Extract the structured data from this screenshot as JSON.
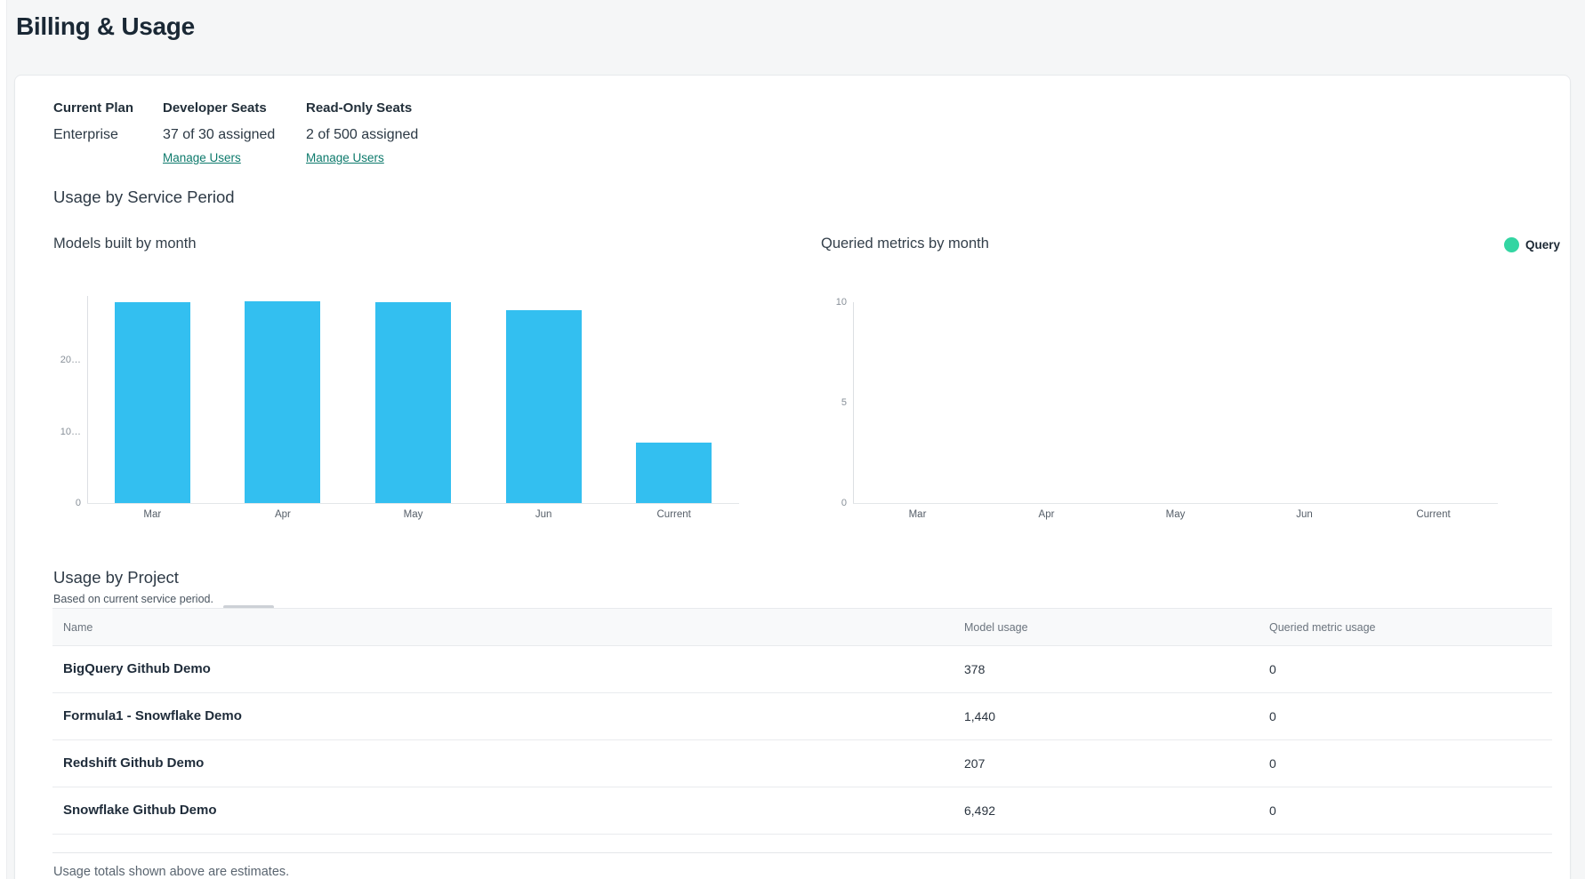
{
  "page": {
    "title": "Billing & Usage"
  },
  "plan": {
    "current_plan_label": "Current Plan",
    "current_plan_value": "Enterprise",
    "developer_seats_label": "Developer Seats",
    "developer_seats_value": "37 of 30 assigned",
    "developer_manage_label": "Manage Users",
    "readonly_seats_label": "Read-Only Seats",
    "readonly_seats_value": "2 of 500 assigned",
    "readonly_manage_label": "Manage Users"
  },
  "usage_section": {
    "title": "Usage by Service Period"
  },
  "chart_data": [
    {
      "type": "bar",
      "title": "Models built by month",
      "categories": [
        "Mar",
        "Apr",
        "May",
        "Jun",
        "Current"
      ],
      "values": [
        28100,
        28300,
        28100,
        27000,
        8517
      ],
      "xlabel": "",
      "ylabel": "",
      "ylim": [
        0,
        29000
      ],
      "yticks": [
        {
          "value": 0,
          "label": "0"
        },
        {
          "value": 10000,
          "label": "10…"
        },
        {
          "value": 20000,
          "label": "20…"
        }
      ],
      "bar_color": "#33bff0",
      "grid": false
    },
    {
      "type": "bar",
      "title": "Queried metrics by month",
      "categories": [
        "Mar",
        "Apr",
        "May",
        "Jun",
        "Current"
      ],
      "values": [
        0,
        0,
        0,
        0,
        0
      ],
      "xlabel": "",
      "ylabel": "",
      "ylim": [
        0,
        10
      ],
      "yticks": [
        {
          "value": 0,
          "label": "0"
        },
        {
          "value": 5,
          "label": "5"
        },
        {
          "value": 10,
          "label": "10"
        }
      ],
      "bar_color": "#33d5a2",
      "grid": false,
      "legend": {
        "label": "Query",
        "color": "#33d5a2",
        "position": "top-right"
      }
    }
  ],
  "usage_by_project": {
    "title": "Usage by Project",
    "subtitle": "Based on current service period.",
    "columns": [
      "Name",
      "Model usage",
      "Queried metric usage"
    ],
    "rows": [
      {
        "name": "BigQuery Github Demo",
        "model_usage": "378",
        "queried_metric_usage": "0"
      },
      {
        "name": "Formula1 - Snowflake Demo",
        "model_usage": "1,440",
        "queried_metric_usage": "0"
      },
      {
        "name": "Redshift Github Demo",
        "model_usage": "207",
        "queried_metric_usage": "0"
      },
      {
        "name": "Snowflake Github Demo",
        "model_usage": "6,492",
        "queried_metric_usage": "0"
      }
    ],
    "footnote": "Usage totals shown above are estimates."
  },
  "colors": {
    "bar_blue": "#33bff0",
    "legend_green": "#33d5a2",
    "link_teal": "#0d7a6c",
    "title_navy": "#1a2835"
  }
}
